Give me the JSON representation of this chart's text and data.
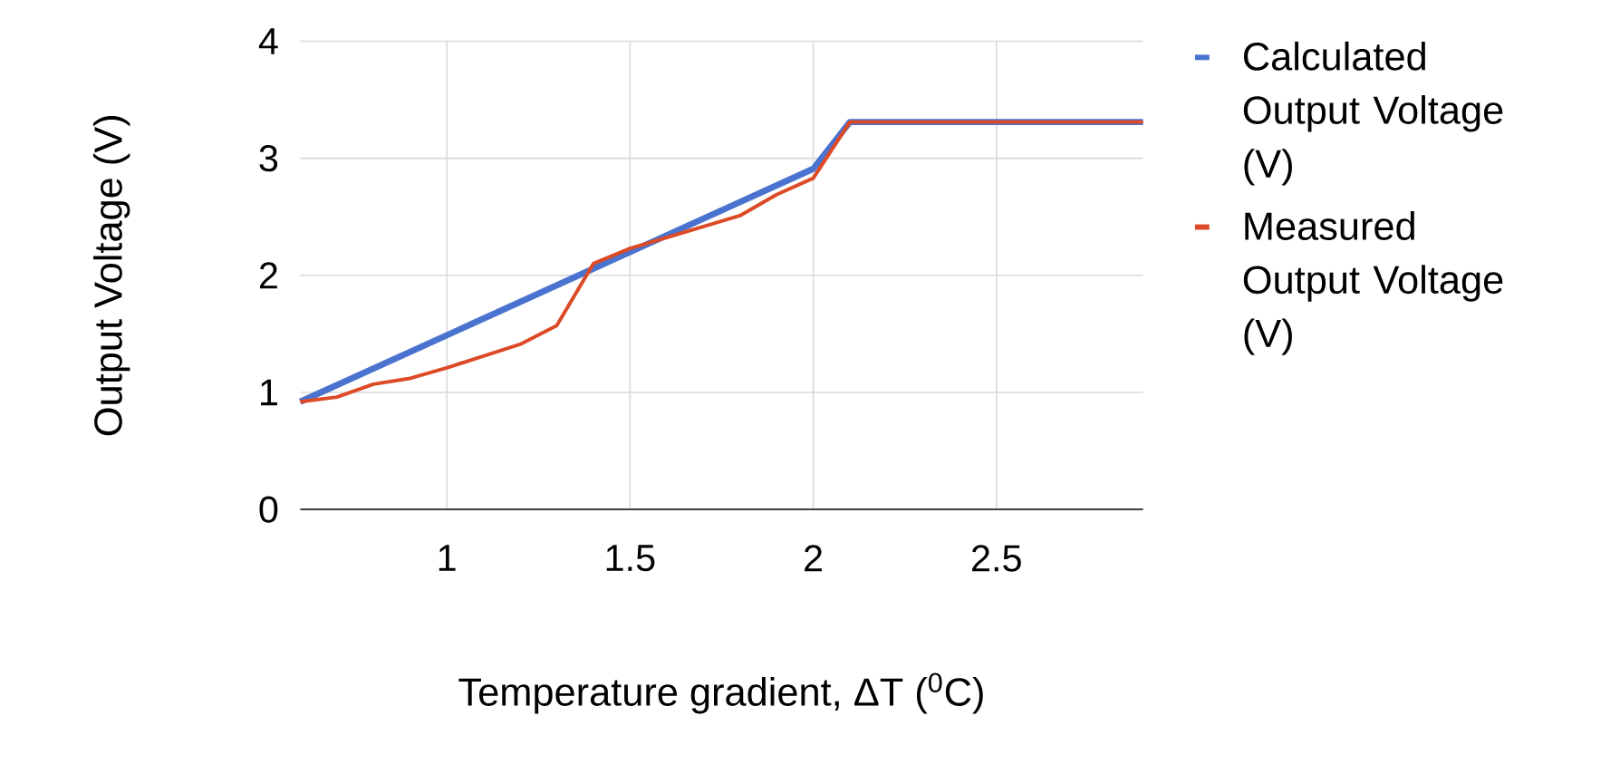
{
  "chart_data": {
    "type": "line",
    "xlabel": "Temperature gradient, ΔT ($^{0}$C)",
    "ylabel": "Output Voltage (V)",
    "xlim": [
      0.6,
      2.9
    ],
    "ylim": [
      0,
      4
    ],
    "xticks": [
      1,
      1.5,
      2,
      2.5
    ],
    "yticks": [
      0,
      1,
      2,
      3,
      4
    ],
    "grid": true,
    "legend": "right",
    "marker": "none",
    "line_style": "solid",
    "series": [
      {
        "name": "Calculated Output Voltage (V)",
        "color": "#4a73cf",
        "x": [
          0.6,
          2.0,
          2.1,
          2.9
        ],
        "values": [
          0.92,
          2.91,
          3.31,
          3.31
        ]
      },
      {
        "name": "Measured Output Voltage (V)",
        "color": "#dc4a26",
        "x": [
          0.6,
          0.7,
          0.8,
          0.9,
          1.0,
          1.1,
          1.2,
          1.3,
          1.4,
          1.5,
          1.8,
          1.9,
          2.0,
          2.1,
          2.9
        ],
        "values": [
          0.92,
          0.96,
          1.07,
          1.12,
          1.21,
          1.31,
          1.41,
          1.57,
          2.1,
          2.23,
          2.51,
          2.69,
          2.83,
          3.31,
          3.31
        ]
      }
    ]
  }
}
